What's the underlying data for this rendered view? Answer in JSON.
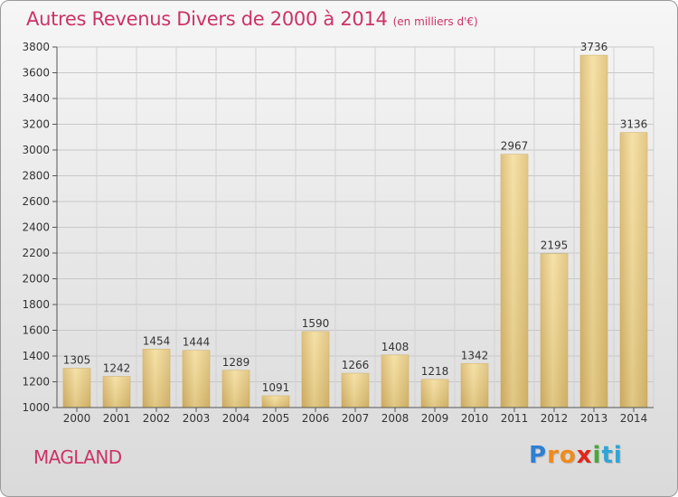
{
  "title": {
    "main": "Autres Revenus Divers de 2000 à 2014",
    "sub": "(en milliers d'€)"
  },
  "location": "MAGLAND",
  "logo": {
    "letters": [
      "P",
      "r",
      "o",
      "x",
      "i",
      "t",
      "i"
    ],
    "colors": [
      "#2f7fd3",
      "#f08a1c",
      "#f08a1c",
      "#e0261b",
      "#49a83a",
      "#2fa5d6",
      "#2fa5d6"
    ]
  },
  "chart_data": {
    "type": "bar",
    "categories": [
      "2000",
      "2001",
      "2002",
      "2003",
      "2004",
      "2005",
      "2006",
      "2007",
      "2008",
      "2009",
      "2010",
      "2011",
      "2012",
      "2013",
      "2014"
    ],
    "values": [
      1305,
      1242,
      1454,
      1444,
      1289,
      1091,
      1590,
      1266,
      1408,
      1218,
      1342,
      2967,
      2195,
      3736,
      3136
    ],
    "ylim": [
      1000,
      3800
    ],
    "yticks": [
      1000,
      1200,
      1400,
      1600,
      1800,
      2000,
      2200,
      2400,
      2600,
      2800,
      3000,
      3200,
      3400,
      3600,
      3800
    ],
    "grid": true,
    "bar_color": "#e8cd86"
  }
}
